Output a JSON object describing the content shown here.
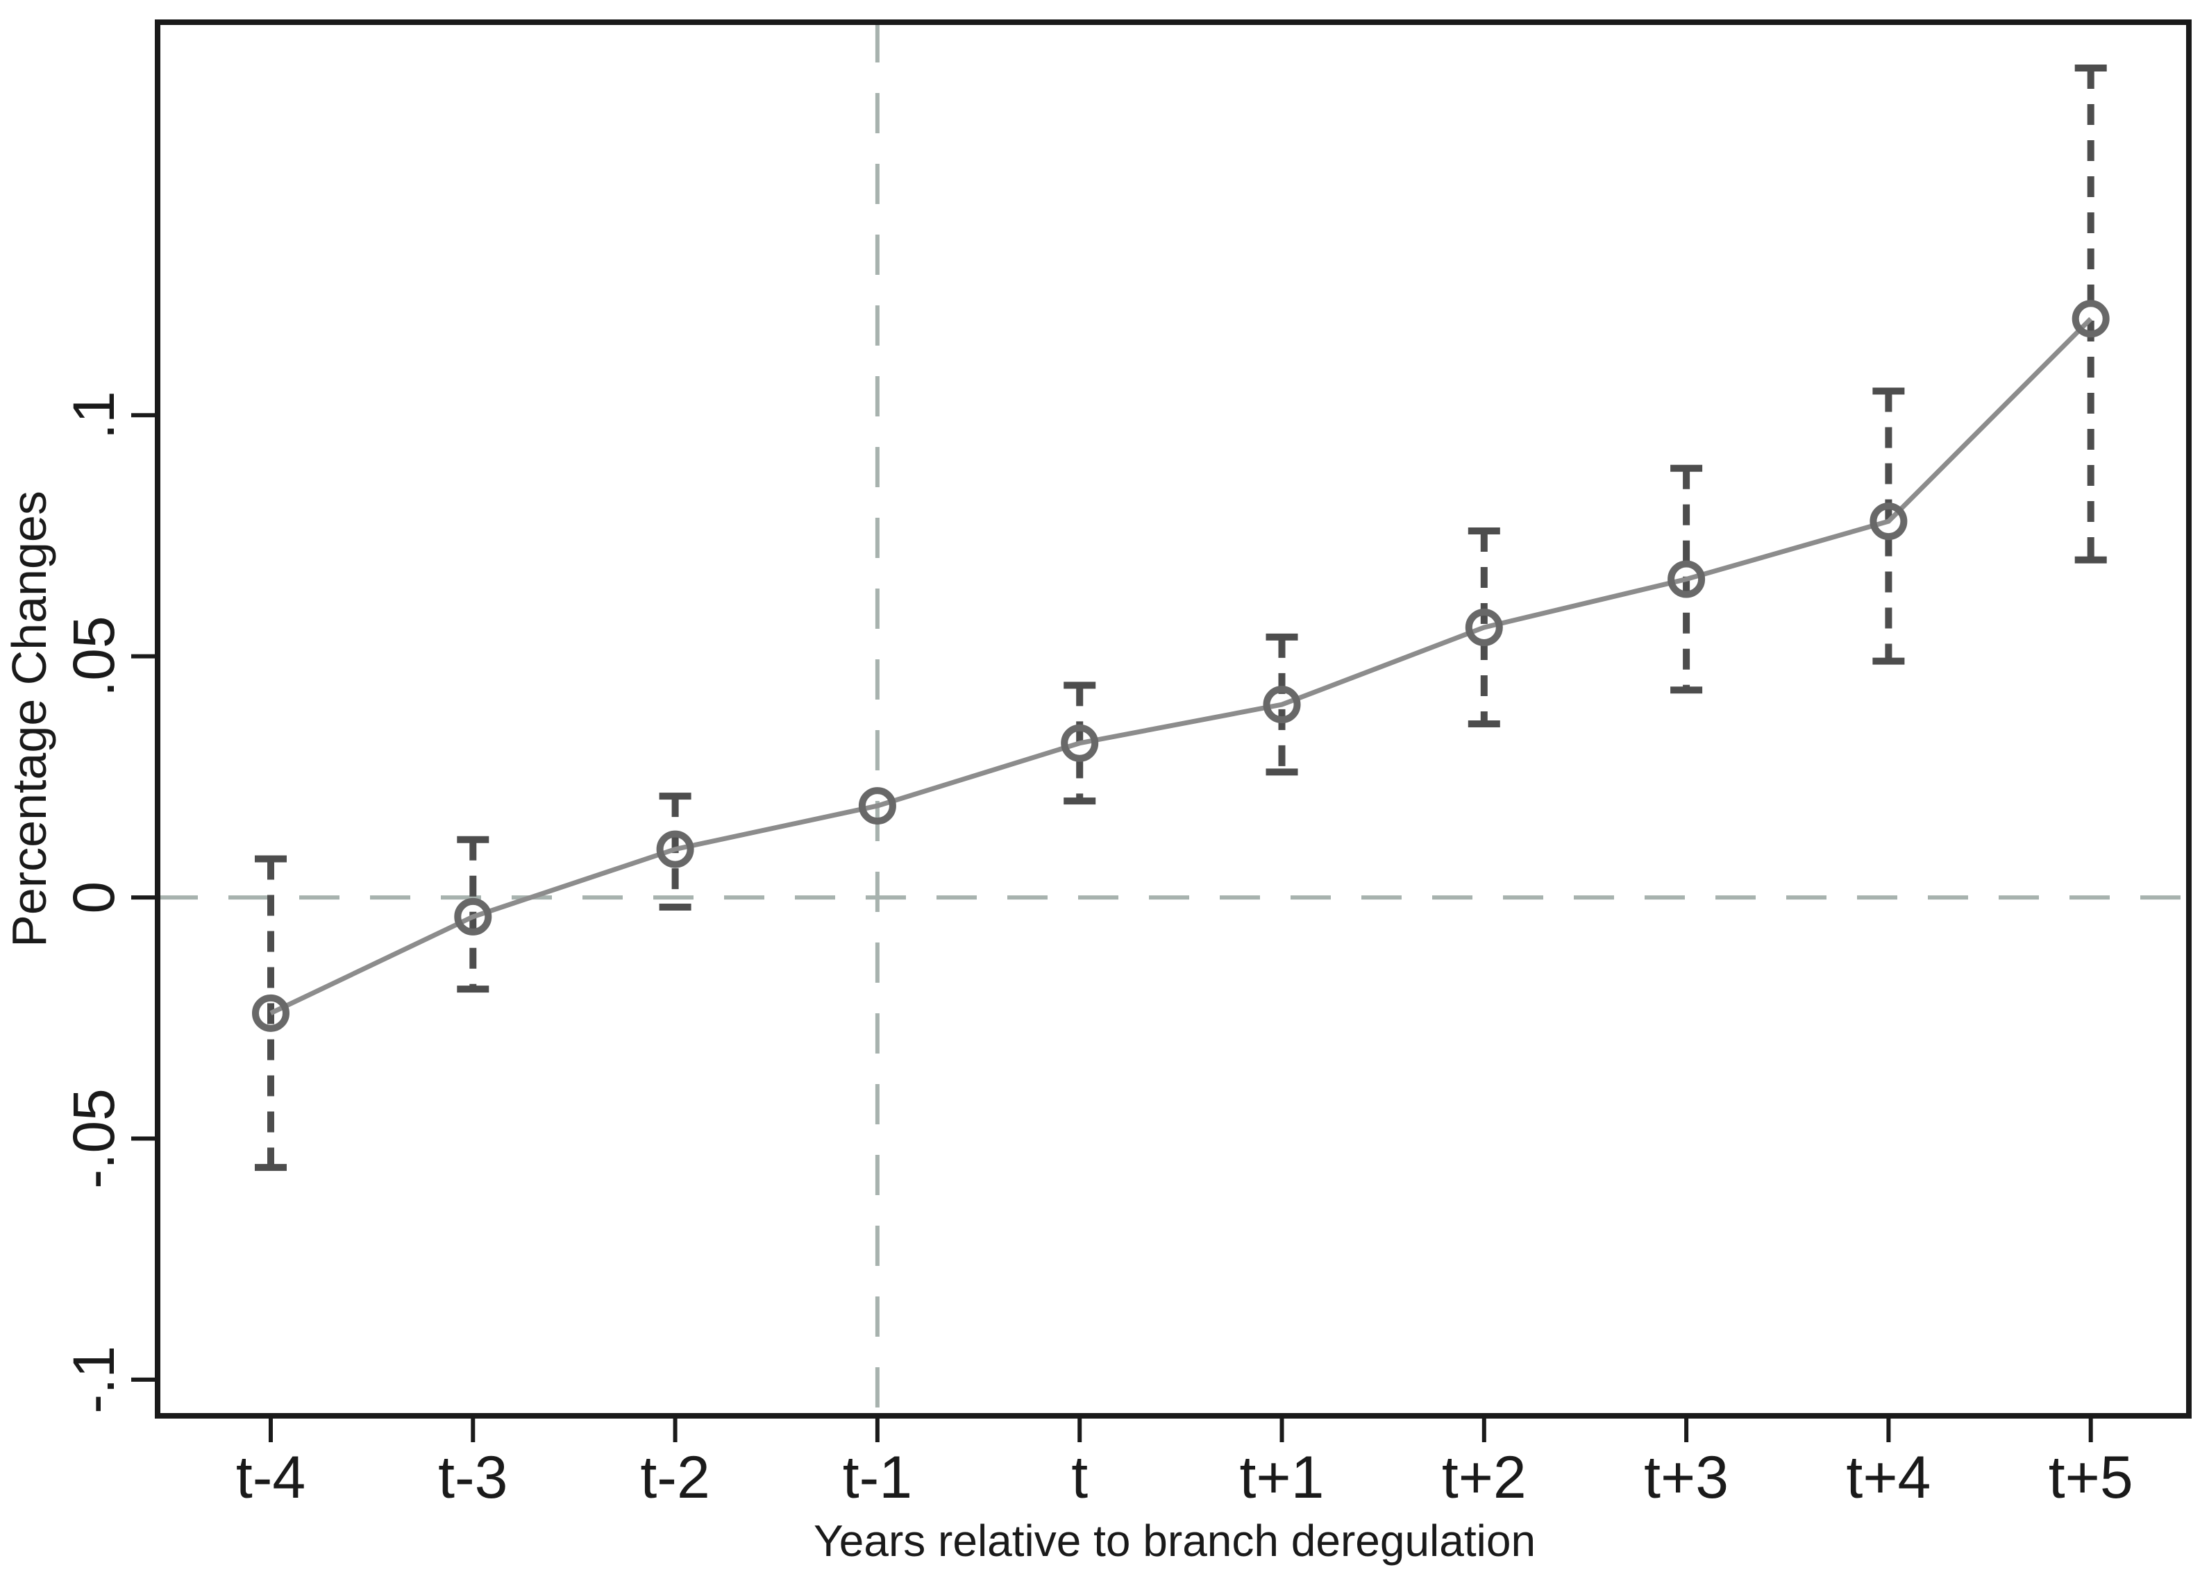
{
  "figure": {
    "background": "#ffffff"
  },
  "colors": {
    "axis": "#1a1a1a",
    "text": "#1a1a1a",
    "data_line": "#8c8c8c",
    "marker_ring": "#686868",
    "error_bar": "#4d4d4d",
    "reference_line": "#a7b2ae",
    "background": "#ffffff"
  },
  "chart_data": {
    "type": "line",
    "title": "",
    "xlabel": "Years relative to branch deregulation",
    "ylabel": "Percentage Changes",
    "categories": [
      "t-4",
      "t-3",
      "t-2",
      "t-1",
      "t",
      "t+1",
      "t+2",
      "t+3",
      "t+4",
      "t+5"
    ],
    "series": [
      {
        "name": "Percentage Changes",
        "marker": "open-circle",
        "values": [
          -0.024,
          -0.004,
          0.01,
          0.019,
          0.032,
          0.04,
          0.056,
          0.066,
          0.078,
          0.12
        ],
        "ci_lower": [
          -0.056,
          -0.019,
          -0.002,
          null,
          0.02,
          0.026,
          0.036,
          0.043,
          0.049,
          0.07
        ],
        "ci_upper": [
          0.008,
          0.012,
          0.021,
          null,
          0.044,
          0.054,
          0.076,
          0.089,
          0.105,
          0.172
        ]
      }
    ],
    "y_ticks": [
      0.1,
      0.05,
      0,
      -0.05,
      -0.1
    ],
    "y_tick_labels": [
      ".1",
      ".05",
      "0",
      "-.05",
      "-.1"
    ],
    "ylim": [
      -0.1075,
      0.1815
    ],
    "grid": false,
    "legend": "none",
    "reference_lines": {
      "horizontal_value": 0,
      "vertical_category": "t-1",
      "style": "dashed"
    },
    "error_bar_style": "dashed-spike-with-caps",
    "box": true
  }
}
